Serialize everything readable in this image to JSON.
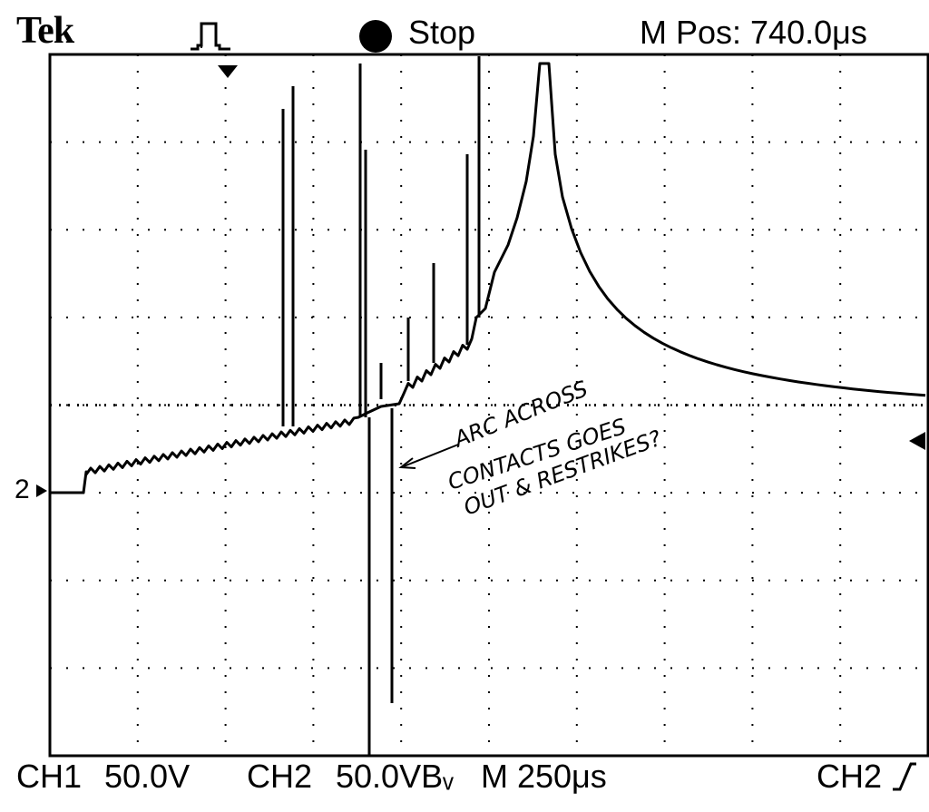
{
  "header": {
    "brand": "Tek",
    "trigger_icon": "pulse-trigger-icon",
    "run_state": "Stop",
    "horizontal_position": "M Pos: 740.0μs"
  },
  "footer": {
    "ch1_label": "CH1",
    "ch1_scale": "50.0V",
    "ch2_label": "CH2",
    "ch2_scale": "50.0VBᵥ",
    "timebase": "M 250μs",
    "trigger_source": "CH2",
    "trigger_slope_icon": "rising-edge-icon"
  },
  "screen": {
    "ground_marker": "2",
    "annotation_lines": [
      "ARC ACROSS",
      "CONTACTS GOES",
      "OUT & RESTRIKES?"
    ],
    "grid_divisions": {
      "x": 10,
      "y": 8
    },
    "colors": {
      "background": "#ffffff",
      "trace": "#000000"
    }
  }
}
